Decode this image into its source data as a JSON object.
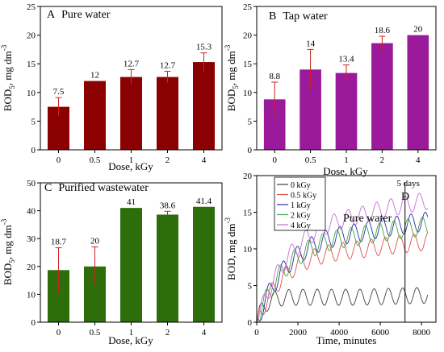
{
  "chart_data": [
    {
      "id": "A",
      "type": "bar",
      "panel_letter": "A",
      "title": "Pure water",
      "xlabel": "Dose, kGy",
      "ylabel": "BOD",
      "ylabel_sub": "5",
      "ylabel_unit": ", mg dm",
      "ylabel_sup": "-3",
      "categories": [
        "0",
        "0.5",
        "1",
        "2",
        "4"
      ],
      "values": [
        7.5,
        12,
        12.7,
        12.7,
        15.3
      ],
      "value_labels": [
        "7.5",
        "12",
        "12.7",
        "12.7",
        "15.3"
      ],
      "errors": [
        1.6,
        0,
        1.3,
        1.0,
        1.6
      ],
      "ylim": [
        0,
        25
      ],
      "yticks": [
        0,
        5,
        10,
        15,
        20,
        25
      ],
      "color": "#8b0000"
    },
    {
      "id": "B",
      "type": "bar",
      "panel_letter": "B",
      "title": "Tap water",
      "xlabel": "Dose, kGy",
      "ylabel": "BOD",
      "ylabel_sub": "5",
      "ylabel_unit": ", mg dm",
      "ylabel_sup": "-3",
      "categories": [
        "0",
        "0.5",
        "1",
        "2",
        "4"
      ],
      "values": [
        8.8,
        14,
        13.4,
        18.6,
        20
      ],
      "value_labels": [
        "8.8",
        "14",
        "13.4",
        "18.6",
        "20"
      ],
      "errors": [
        3.0,
        3.5,
        1.4,
        1.2,
        0
      ],
      "ylim": [
        0,
        25
      ],
      "yticks": [
        0,
        5,
        10,
        15,
        20,
        25
      ],
      "color": "#9b1a9b"
    },
    {
      "id": "C",
      "type": "bar",
      "panel_letter": "C",
      "title": "Purified wastewater",
      "xlabel": "Dose, kGy",
      "ylabel": "BOD",
      "ylabel_sub": "5",
      "ylabel_unit": ", mg dm",
      "ylabel_sup": "-3",
      "categories": [
        "0",
        "0.5",
        "1",
        "2",
        "4"
      ],
      "values": [
        18.7,
        20,
        41,
        38.6,
        41.4
      ],
      "value_labels": [
        "18.7",
        "20",
        "41",
        "38.6",
        "41.4"
      ],
      "errors": [
        8,
        7,
        0,
        1.2,
        0
      ],
      "ylim": [
        0,
        50
      ],
      "yticks": [
        0,
        10,
        20,
        30,
        40,
        50
      ],
      "color": "#2d6e0a"
    },
    {
      "id": "D",
      "type": "line",
      "panel_letter": "D",
      "title": "Pure water",
      "xlabel": "Time, minutes",
      "ylabel": "BOD, mg dm",
      "ylabel_sup": "-3",
      "xlim": [
        0,
        8700
      ],
      "ylim": [
        0,
        20
      ],
      "xticks": [
        0,
        2000,
        4000,
        6000,
        8000
      ],
      "yticks": [
        0,
        5,
        10,
        15,
        20
      ],
      "annotation": "5 days",
      "annotation_x": 7200,
      "legend_position": "top-left",
      "series": [
        {
          "name": "0 kGy",
          "color": "#404040",
          "plateau": 3.4,
          "amp": 1.1,
          "rise": 350
        },
        {
          "name": "0.5 kGy",
          "color": "#e05050",
          "plateau": 10.2,
          "amp": 1.2,
          "rise": 1400
        },
        {
          "name": "1 kGy",
          "color": "#2a2aa8",
          "plateau": 12.8,
          "amp": 1.3,
          "rise": 1600
        },
        {
          "name": "2 kGy",
          "color": "#3aa83a",
          "plateau": 12.2,
          "amp": 1.3,
          "rise": 1500
        },
        {
          "name": "4 kGy",
          "color": "#c76fd6",
          "plateau": 15.5,
          "amp": 1.2,
          "rise": 1800
        }
      ]
    }
  ]
}
